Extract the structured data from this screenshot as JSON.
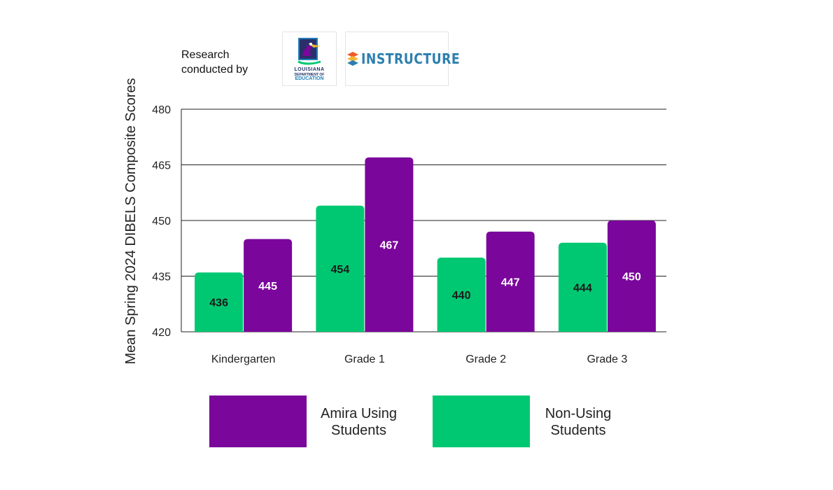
{
  "credit": {
    "line1": "Research",
    "line2": "conducted by",
    "logos": [
      {
        "icon": "louisiana-pelican-logo-icon",
        "line1": "LOUISIANA",
        "line2": "DEPARTMENT OF",
        "line3": "EDUCATION"
      },
      {
        "icon": "instructure-logo-icon",
        "text": "INSTRUCTURE"
      }
    ]
  },
  "colors": {
    "amira": "#7a069b",
    "non_using": "#00c872",
    "grid": "#222222"
  },
  "chart_data": {
    "type": "bar",
    "title": "",
    "xlabel": "",
    "ylabel": "Mean Spring 2024 DIBELS Composite Scores",
    "ylim": [
      420,
      480
    ],
    "yticks": [
      420,
      435,
      450,
      465,
      480
    ],
    "grid": true,
    "legend_position": "bottom",
    "categories": [
      "Kindergarten",
      "Grade 1",
      "Grade 2",
      "Grade 3"
    ],
    "series": [
      {
        "name": "Non-Using Students",
        "legend_line1": "Non-Using",
        "legend_line2": "Students",
        "values": [
          436,
          454,
          440,
          444
        ]
      },
      {
        "name": "Amira Using Students",
        "legend_line1": "Amira Using",
        "legend_line2": "Students",
        "values": [
          445,
          467,
          447,
          450
        ]
      }
    ]
  }
}
